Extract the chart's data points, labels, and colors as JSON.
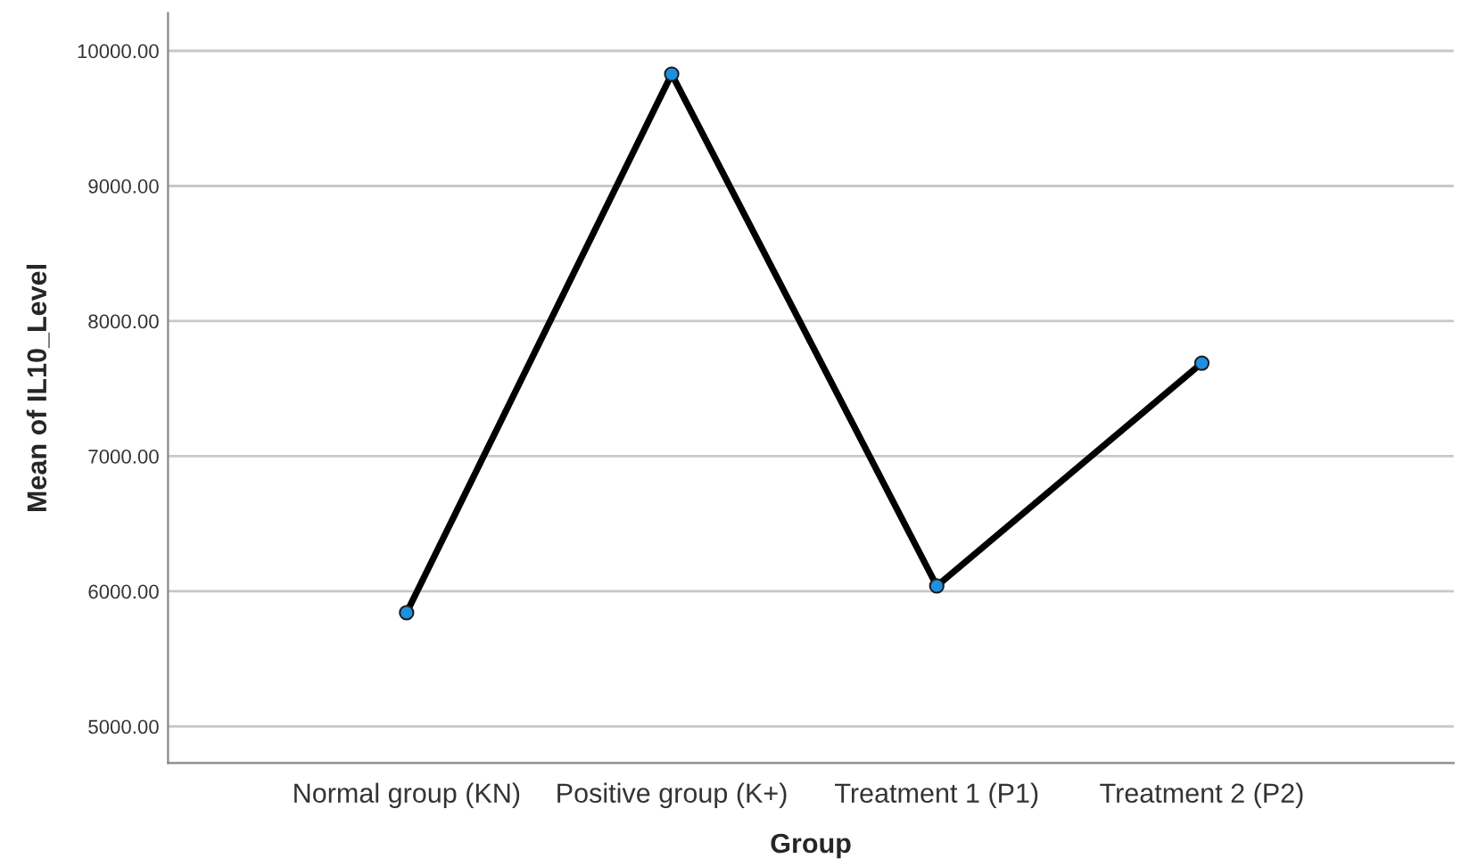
{
  "chart_data": {
    "type": "line",
    "xlabel": "Group",
    "ylabel": "Mean of IL10_Level",
    "categories": [
      "Normal group (KN)",
      "Positive group (K+)",
      "Treatment 1 (P1)",
      "Treatment 2 (P2)"
    ],
    "series": [
      {
        "color": "#000000",
        "values": [
          5842,
          9828,
          6040,
          7689
        ]
      }
    ],
    "marker": "circle",
    "ylim": [
      4730,
      10280
    ],
    "yticks": [
      {
        "value": 5000,
        "label": "5000.00"
      },
      {
        "value": 6000,
        "label": "6000.00"
      },
      {
        "value": 7000,
        "label": "7000.00"
      },
      {
        "value": 8000,
        "label": "8000.00"
      },
      {
        "value": 9000,
        "label": "9000.00"
      },
      {
        "value": 10000,
        "label": "10000.00"
      }
    ],
    "grid": "y",
    "legend": false
  }
}
